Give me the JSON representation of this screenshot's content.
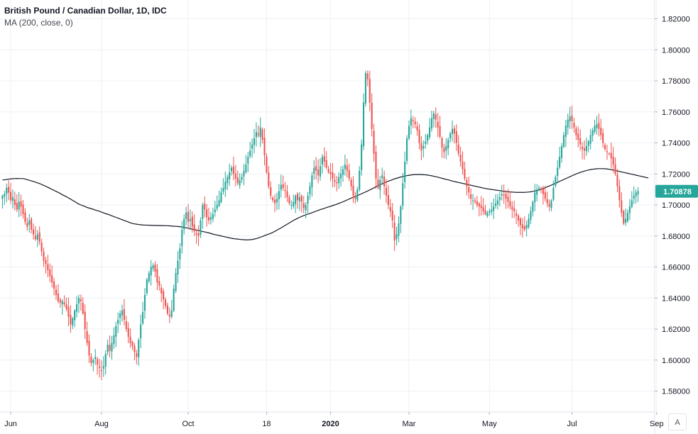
{
  "legend": {
    "symbol": "British Pound / Canadian Dollar, 1D, IDC",
    "indicator": "MA (200, close, 0)"
  },
  "price_scale": {
    "current_price": "1.70878",
    "current_price_color": "#26a69a"
  },
  "axis_corner": {
    "label": "A"
  },
  "colors": {
    "up": "#26a69a",
    "down": "#ef5350",
    "ma": "#131722",
    "grid": "#eef0f3",
    "axis_text": "#131722"
  },
  "chart_data": {
    "type": "line",
    "title": "British Pound / Canadian Dollar, 1D, IDC",
    "ylim": [
      1.57,
      1.83
    ],
    "y_ticks": [
      "1.58000",
      "1.60000",
      "1.62000",
      "1.64000",
      "1.66000",
      "1.68000",
      "1.70000",
      "1.72000",
      "1.74000",
      "1.76000",
      "1.78000",
      "1.80000",
      "1.82000"
    ],
    "x_ticks": [
      "Jun",
      "Aug",
      "Oct",
      "18",
      "2020",
      "Mar",
      "May",
      "Jul",
      "Sep"
    ],
    "x_tick_index": [
      4,
      48,
      90,
      128,
      159,
      197,
      236,
      276,
      317
    ],
    "grid": true,
    "series": [
      {
        "name": "GBPCAD",
        "kind": "candlestick",
        "close": [
          1.706,
          1.707,
          1.711,
          1.708,
          1.703,
          1.705,
          1.7,
          1.697,
          1.702,
          1.699,
          1.694,
          1.689,
          1.686,
          1.69,
          1.684,
          1.681,
          1.678,
          1.681,
          1.676,
          1.67,
          1.664,
          1.662,
          1.658,
          1.654,
          1.65,
          1.646,
          1.642,
          1.638,
          1.637,
          1.638,
          1.636,
          1.633,
          1.628,
          1.623,
          1.627,
          1.632,
          1.636,
          1.64,
          1.638,
          1.63,
          1.62,
          1.611,
          1.603,
          1.598,
          1.6,
          1.602,
          1.597,
          1.595,
          1.593,
          1.596,
          1.604,
          1.61,
          1.606,
          1.611,
          1.616,
          1.622,
          1.626,
          1.63,
          1.632,
          1.626,
          1.62,
          1.615,
          1.611,
          1.609,
          1.605,
          1.602,
          1.613,
          1.623,
          1.631,
          1.642,
          1.652,
          1.656,
          1.66,
          1.661,
          1.657,
          1.65,
          1.648,
          1.643,
          1.639,
          1.635,
          1.63,
          1.628,
          1.632,
          1.646,
          1.656,
          1.664,
          1.672,
          1.684,
          1.691,
          1.695,
          1.689,
          1.691,
          1.686,
          1.683,
          1.681,
          1.68,
          1.69,
          1.7,
          1.697,
          1.692,
          1.69,
          1.692,
          1.694,
          1.697,
          1.7,
          1.703,
          1.708,
          1.711,
          1.715,
          1.718,
          1.721,
          1.724,
          1.72,
          1.717,
          1.714,
          1.716,
          1.718,
          1.722,
          1.726,
          1.731,
          1.735,
          1.739,
          1.743,
          1.747,
          1.745,
          1.75,
          1.742,
          1.732,
          1.721,
          1.712,
          1.706,
          1.703,
          1.701,
          1.704,
          1.709,
          1.713,
          1.711,
          1.709,
          1.705,
          1.701,
          1.7,
          1.702,
          1.706,
          1.703,
          1.705,
          1.702,
          1.698,
          1.7,
          1.706,
          1.712,
          1.719,
          1.724,
          1.722,
          1.719,
          1.725,
          1.731,
          1.728,
          1.724,
          1.721,
          1.72,
          1.717,
          1.715,
          1.714,
          1.718,
          1.72,
          1.723,
          1.726,
          1.722,
          1.717,
          1.712,
          1.706,
          1.704,
          1.71,
          1.722,
          1.739,
          1.766,
          1.785,
          1.781,
          1.766,
          1.749,
          1.733,
          1.717,
          1.711,
          1.716,
          1.719,
          1.712,
          1.706,
          1.7,
          1.696,
          1.69,
          1.677,
          1.681,
          1.688,
          1.699,
          1.714,
          1.728,
          1.743,
          1.751,
          1.756,
          1.754,
          1.752,
          1.748,
          1.74,
          1.735,
          1.738,
          1.741,
          1.745,
          1.75,
          1.756,
          1.759,
          1.755,
          1.75,
          1.744,
          1.737,
          1.734,
          1.738,
          1.742,
          1.746,
          1.749,
          1.746,
          1.74,
          1.733,
          1.728,
          1.723,
          1.717,
          1.712,
          1.708,
          1.704,
          1.703,
          1.702,
          1.7,
          1.699,
          1.698,
          1.696,
          1.694,
          1.695,
          1.696,
          1.697,
          1.699,
          1.701,
          1.703,
          1.705,
          1.707,
          1.706,
          1.704,
          1.702,
          1.699,
          1.697,
          1.696,
          1.693,
          1.69,
          1.687,
          1.685,
          1.684,
          1.687,
          1.691,
          1.696,
          1.702,
          1.708,
          1.71,
          1.711,
          1.71,
          1.707,
          1.704,
          1.701,
          1.699,
          1.703,
          1.711,
          1.718,
          1.724,
          1.731,
          1.738,
          1.745,
          1.751,
          1.755,
          1.757,
          1.754,
          1.75,
          1.745,
          1.742,
          1.739,
          1.736,
          1.735,
          1.738,
          1.741,
          1.745,
          1.748,
          1.751,
          1.752,
          1.749,
          1.745,
          1.74,
          1.736,
          1.734,
          1.733,
          1.73,
          1.726,
          1.72,
          1.712,
          1.703,
          1.695,
          1.688,
          1.691,
          1.695,
          1.699,
          1.703,
          1.706,
          1.708,
          1.709
        ]
      },
      {
        "name": "MA (200, close, 0)",
        "kind": "line",
        "values": [
          1.7161,
          1.7162,
          1.7164,
          1.7166,
          1.7168,
          1.7169,
          1.717,
          1.7171,
          1.717,
          1.717,
          1.717,
          1.7167,
          1.7163,
          1.7159,
          1.7155,
          1.7151,
          1.7147,
          1.7142,
          1.7138,
          1.7132,
          1.7126,
          1.712,
          1.7114,
          1.7107,
          1.71,
          1.7094,
          1.7087,
          1.7081,
          1.7074,
          1.7066,
          1.7059,
          1.7053,
          1.7045,
          1.7038,
          1.7029,
          1.7022,
          1.7013,
          1.7006,
          1.7,
          1.6995,
          1.699,
          1.6984,
          1.698,
          1.6976,
          1.6972,
          1.6967,
          1.6963,
          1.6959,
          1.6954,
          1.6949,
          1.6944,
          1.694,
          1.6935,
          1.693,
          1.6925,
          1.692,
          1.6915,
          1.691,
          1.6905,
          1.69,
          1.6895,
          1.689,
          1.6885,
          1.6881,
          1.6878,
          1.6876,
          1.6874,
          1.6872,
          1.6871,
          1.687,
          1.687,
          1.6869,
          1.6869,
          1.6868,
          1.6868,
          1.6868,
          1.6867,
          1.6867,
          1.6867,
          1.6866,
          1.6866,
          1.6865,
          1.6864,
          1.6863,
          1.6862,
          1.6861,
          1.686,
          1.6858,
          1.6856,
          1.6853,
          1.685,
          1.6847,
          1.6844,
          1.6841,
          1.6838,
          1.6835,
          1.6832,
          1.6829,
          1.6826,
          1.6823,
          1.682,
          1.6816,
          1.6812,
          1.6809,
          1.6806,
          1.6803,
          1.68,
          1.6797,
          1.6794,
          1.6791,
          1.6788,
          1.6785,
          1.6783,
          1.6781,
          1.678,
          1.6778,
          1.6777,
          1.6776,
          1.6775,
          1.6775,
          1.6776,
          1.6777,
          1.678,
          1.6783,
          1.6787,
          1.6792,
          1.6797,
          1.6802,
          1.6807,
          1.6812,
          1.6817,
          1.6823,
          1.683,
          1.6837,
          1.6845,
          1.6852,
          1.686,
          1.6868,
          1.6876,
          1.6884,
          1.6892,
          1.69,
          1.6907,
          1.6914,
          1.692,
          1.6926,
          1.6931,
          1.6936,
          1.6941,
          1.6945,
          1.695,
          1.6955,
          1.696,
          1.6965,
          1.697,
          1.6974,
          1.6978,
          1.6983,
          1.6987,
          1.6991,
          1.6996,
          1.7,
          1.7005,
          1.701,
          1.7015,
          1.702,
          1.7026,
          1.7032,
          1.7038,
          1.7044,
          1.705,
          1.7055,
          1.706,
          1.7066,
          1.7072,
          1.7078,
          1.7084,
          1.709,
          1.7097,
          1.7103,
          1.711,
          1.7118,
          1.7124,
          1.713,
          1.7136,
          1.7142,
          1.7148,
          1.7153,
          1.7158,
          1.7163,
          1.7168,
          1.7172,
          1.7176,
          1.718,
          1.7183,
          1.7186,
          1.7189,
          1.7191,
          1.7193,
          1.7195,
          1.7196,
          1.7196,
          1.7196,
          1.7196,
          1.7195,
          1.7194,
          1.7193,
          1.719,
          1.7188,
          1.7185,
          1.7182,
          1.7179,
          1.7175,
          1.7172,
          1.7168,
          1.7165,
          1.7162,
          1.7158,
          1.7154,
          1.7151,
          1.7148,
          1.7145,
          1.7142,
          1.7139,
          1.7136,
          1.7133,
          1.713,
          1.7127,
          1.7124,
          1.7121,
          1.7118,
          1.7115,
          1.7112,
          1.7109,
          1.7106,
          1.7104,
          1.7102,
          1.71,
          1.7098,
          1.7096,
          1.7094,
          1.7092,
          1.709,
          1.7088,
          1.7086,
          1.7085,
          1.7084,
          1.7083,
          1.7082,
          1.7081,
          1.7081,
          1.7081,
          1.7081,
          1.7081,
          1.7082,
          1.7083,
          1.7085,
          1.7087,
          1.709,
          1.7093,
          1.7097,
          1.7101,
          1.7106,
          1.7111,
          1.7117,
          1.7122,
          1.7128,
          1.7134,
          1.714,
          1.7146,
          1.7152,
          1.7158,
          1.7164,
          1.717,
          1.7176,
          1.7182,
          1.7188,
          1.7194,
          1.72,
          1.7205,
          1.721,
          1.7214,
          1.7218,
          1.7222,
          1.7225,
          1.7228,
          1.723,
          1.7232,
          1.7233,
          1.7234,
          1.7234,
          1.7234,
          1.7233,
          1.7232,
          1.723,
          1.7228,
          1.7225,
          1.7222,
          1.7219,
          1.7216,
          1.7213,
          1.721,
          1.7207,
          1.7204,
          1.7201,
          1.7198,
          1.7195,
          1.7192,
          1.7189,
          1.7186,
          1.7183,
          1.718,
          1.7177,
          1.7174
        ]
      }
    ]
  }
}
